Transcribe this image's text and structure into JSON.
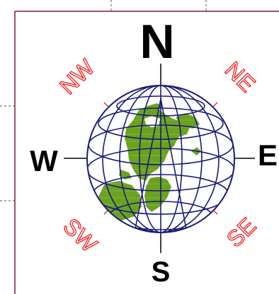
{
  "compass": {
    "north": "N",
    "south": "S",
    "east": "E",
    "west": "W",
    "northwest": "NW",
    "northeast": "NE",
    "southwest": "SW",
    "southeast": "SE"
  },
  "colors": {
    "frame": "#7a1f2b",
    "cardinal": "#000000",
    "intercardinal": "#ee2222",
    "globe_lines": "#1a1a7a",
    "land": "#6aa21e"
  },
  "icons": [
    "globe-icon"
  ]
}
